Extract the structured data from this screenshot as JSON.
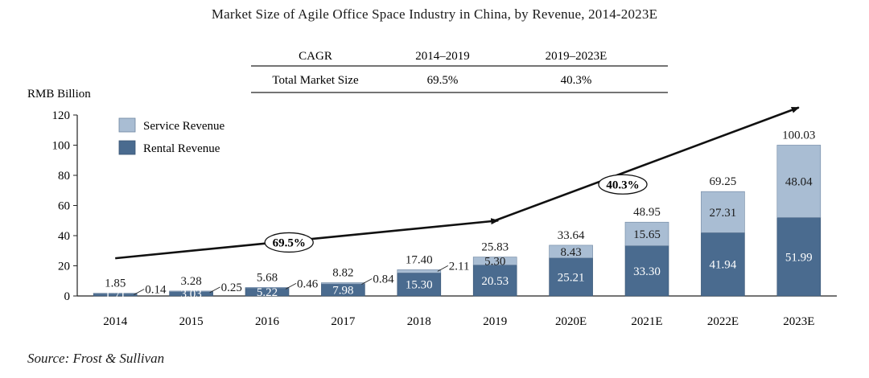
{
  "chart_data": {
    "type": "bar",
    "stacked": true,
    "title": "Market Size of Agile Office Space Industry in China, by Revenue, 2014-2023E",
    "ylabel": "RMB Billion",
    "xlabel": "",
    "ylim": [
      0,
      120
    ],
    "yticks": [
      0,
      20,
      40,
      60,
      80,
      100,
      120
    ],
    "grid": false,
    "legend_position": "top-left",
    "categories": [
      "2014",
      "2015",
      "2016",
      "2017",
      "2018",
      "2019",
      "2020E",
      "2021E",
      "2022E",
      "2023E"
    ],
    "series": [
      {
        "name": "Rental Revenue",
        "color": "#4a6b8f",
        "values": [
          1.71,
          3.03,
          5.22,
          7.98,
          15.3,
          20.53,
          25.21,
          33.3,
          41.94,
          51.99
        ],
        "labels": [
          "1.71",
          "3.03",
          "5.22",
          "7.98",
          "15.30",
          "20.53",
          "25.21",
          "33.30",
          "41.94",
          "51.99"
        ]
      },
      {
        "name": "Service Revenue",
        "color": "#a9bdd3",
        "values": [
          0.14,
          0.25,
          0.46,
          0.84,
          2.11,
          5.3,
          8.43,
          15.65,
          27.31,
          48.04
        ],
        "labels": [
          "0.14",
          "0.25",
          "0.46",
          "0.84",
          "2.11",
          "5.30",
          "8.43",
          "15.65",
          "27.31",
          "48.04"
        ]
      }
    ],
    "totals": [
      1.85,
      3.28,
      5.68,
      8.82,
      17.4,
      25.83,
      33.64,
      48.95,
      69.25,
      100.03
    ],
    "total_labels": [
      "1.85",
      "3.28",
      "5.68",
      "8.82",
      "17.40",
      "25.83",
      "33.64",
      "48.95",
      "69.25",
      "100.03"
    ],
    "cagr_table": {
      "headers": [
        "CAGR",
        "2014–2019",
        "2019–2023E"
      ],
      "row_label": "Total Market Size",
      "values": [
        "69.5%",
        "40.3%"
      ]
    },
    "annotations": [
      {
        "label": "69.5%",
        "from_category": "2014",
        "to_category": "2019",
        "from_value": 25,
        "to_value": 50
      },
      {
        "label": "40.3%",
        "from_category": "2019",
        "to_category": "2023E",
        "from_value": 50,
        "to_value": 125
      }
    ],
    "source": "Source: Frost & Sullivan"
  },
  "colors": {
    "rental": "#4a6b8f",
    "service": "#a9bdd3",
    "text": "#1a1a1a",
    "bar_label": "#ffffff"
  }
}
